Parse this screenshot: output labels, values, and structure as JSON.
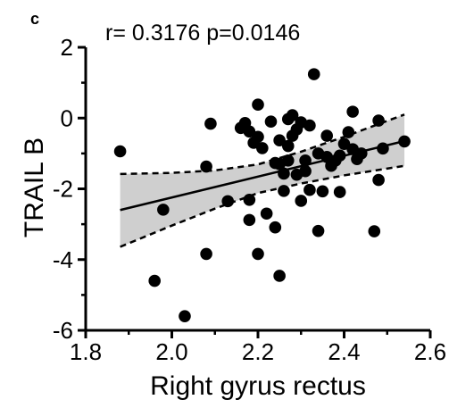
{
  "panel_label": "c",
  "chart_data": {
    "type": "scatter",
    "title": "r= 0.3176 p=0.0146",
    "xlabel": "Right gyrus rectus",
    "ylabel": "TRAIL B",
    "xlim": [
      1.8,
      2.6
    ],
    "ylim": [
      -6,
      2
    ],
    "xticks": [
      1.8,
      2.0,
      2.2,
      2.4,
      2.6
    ],
    "xtick_labels": [
      "1.8",
      "2.0",
      "2.2",
      "2.4",
      "2.6"
    ],
    "yticks": [
      -6,
      -4,
      -2,
      0,
      2
    ],
    "ytick_labels": [
      "-6",
      "-4",
      "-2",
      "0",
      "2"
    ],
    "grid": false,
    "points": [
      {
        "x": 1.88,
        "y": -0.94
      },
      {
        "x": 1.96,
        "y": -4.6
      },
      {
        "x": 1.98,
        "y": -2.59
      },
      {
        "x": 2.03,
        "y": -5.6
      },
      {
        "x": 2.08,
        "y": -1.37
      },
      {
        "x": 2.08,
        "y": -3.84
      },
      {
        "x": 2.09,
        "y": -0.16
      },
      {
        "x": 2.13,
        "y": -2.35
      },
      {
        "x": 2.16,
        "y": -0.28
      },
      {
        "x": 2.17,
        "y": -0.14
      },
      {
        "x": 2.18,
        "y": -0.38
      },
      {
        "x": 2.18,
        "y": -2.31
      },
      {
        "x": 2.18,
        "y": -2.88
      },
      {
        "x": 2.19,
        "y": -0.7
      },
      {
        "x": 2.2,
        "y": 0.38
      },
      {
        "x": 2.2,
        "y": -0.53
      },
      {
        "x": 2.2,
        "y": -3.84
      },
      {
        "x": 2.21,
        "y": -0.85
      },
      {
        "x": 2.22,
        "y": -2.7
      },
      {
        "x": 2.23,
        "y": -0.1
      },
      {
        "x": 2.24,
        "y": -1.27
      },
      {
        "x": 2.24,
        "y": -3.09
      },
      {
        "x": 2.25,
        "y": -0.63
      },
      {
        "x": 2.25,
        "y": -1.3
      },
      {
        "x": 2.25,
        "y": -4.46
      },
      {
        "x": 2.26,
        "y": -1.57
      },
      {
        "x": 2.26,
        "y": -2.06
      },
      {
        "x": 2.27,
        "y": -0.79
      },
      {
        "x": 2.27,
        "y": -1.2
      },
      {
        "x": 2.27,
        "y": -0.03
      },
      {
        "x": 2.28,
        "y": 0.08
      },
      {
        "x": 2.28,
        "y": -0.5
      },
      {
        "x": 2.29,
        "y": -0.32
      },
      {
        "x": 2.29,
        "y": -1.6
      },
      {
        "x": 2.3,
        "y": -0.12
      },
      {
        "x": 2.3,
        "y": -2.34
      },
      {
        "x": 2.31,
        "y": -1.2
      },
      {
        "x": 2.31,
        "y": -1.5
      },
      {
        "x": 2.32,
        "y": -0.21
      },
      {
        "x": 2.32,
        "y": -2.03
      },
      {
        "x": 2.33,
        "y": 1.24
      },
      {
        "x": 2.34,
        "y": -1.0
      },
      {
        "x": 2.34,
        "y": -3.19
      },
      {
        "x": 2.35,
        "y": -2.07
      },
      {
        "x": 2.36,
        "y": -0.5
      },
      {
        "x": 2.36,
        "y": -1.1
      },
      {
        "x": 2.37,
        "y": -1.35
      },
      {
        "x": 2.38,
        "y": -1.2
      },
      {
        "x": 2.39,
        "y": -1.06
      },
      {
        "x": 2.39,
        "y": -2.09
      },
      {
        "x": 2.4,
        "y": -0.73
      },
      {
        "x": 2.41,
        "y": -0.4
      },
      {
        "x": 2.42,
        "y": -0.88
      },
      {
        "x": 2.42,
        "y": 0.18
      },
      {
        "x": 2.43,
        "y": -1.16
      },
      {
        "x": 2.44,
        "y": -1.0
      },
      {
        "x": 2.47,
        "y": -3.2
      },
      {
        "x": 2.48,
        "y": -0.07
      },
      {
        "x": 2.48,
        "y": -1.75
      },
      {
        "x": 2.49,
        "y": -0.86
      },
      {
        "x": 2.54,
        "y": -0.66
      }
    ],
    "regression_line": {
      "x": [
        1.88,
        2.54
      ],
      "y": [
        -2.6,
        -0.65
      ]
    },
    "confidence_band": {
      "x": [
        1.88,
        2.0,
        2.1,
        2.2,
        2.3,
        2.4,
        2.54
      ],
      "upper": [
        -1.58,
        -1.55,
        -1.48,
        -1.31,
        -0.95,
        -0.53,
        0.1
      ],
      "lower": [
        -3.64,
        -3.04,
        -2.56,
        -2.12,
        -1.85,
        -1.62,
        -1.35
      ]
    },
    "colors": {
      "points": "#000000",
      "line": "#000000",
      "band": "#cfcfcf"
    }
  }
}
